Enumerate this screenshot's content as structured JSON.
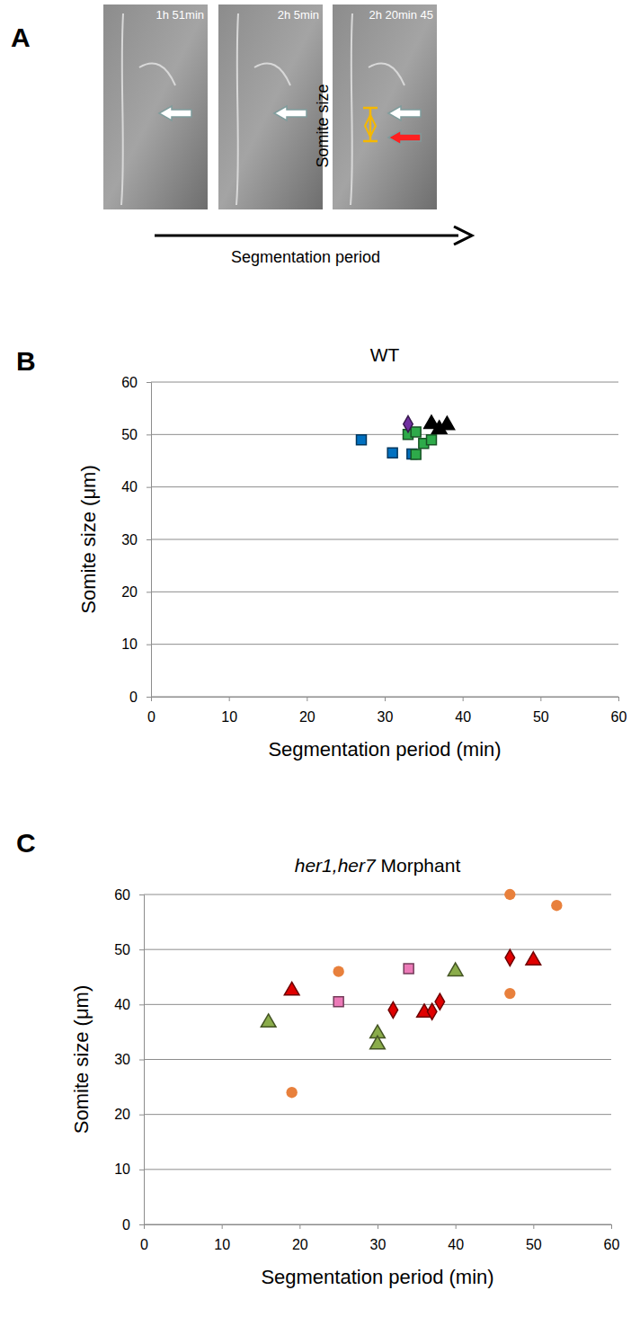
{
  "figure_a": {
    "panel_label": "A",
    "frames": [
      "1h 51min",
      "2h 5min",
      "2h 20min 45"
    ],
    "vertical_label": "Somite size",
    "arrow_label": "Segmentation period"
  },
  "chart_data": [
    {
      "type": "scatter",
      "panel_label": "B",
      "title": "WT",
      "x_label": "Segmentation period (min)",
      "y_label": "Somite size (μm)",
      "xlim": [
        0,
        60
      ],
      "ylim": [
        0,
        60
      ],
      "xticks": [
        0,
        10,
        20,
        30,
        40,
        50,
        60
      ],
      "yticks": [
        0,
        10,
        20,
        30,
        40,
        50,
        60
      ],
      "grid": true,
      "series": [
        {
          "color": "#0070c0",
          "marker": "square",
          "x": [
            27,
            31,
            33.5
          ],
          "values": [
            49,
            46.5,
            46.3
          ]
        },
        {
          "color": "#2eaa4a",
          "marker": "square",
          "x": [
            33,
            34,
            35,
            36,
            34
          ],
          "values": [
            50,
            50.5,
            48.3,
            49,
            46.2
          ]
        },
        {
          "color": "#7030a0",
          "marker": "diamond",
          "x": [
            33
          ],
          "values": [
            52
          ]
        },
        {
          "color": "#000000",
          "marker": "triangle",
          "x": [
            36,
            37,
            38
          ],
          "values": [
            52,
            51,
            51.8
          ]
        }
      ]
    },
    {
      "type": "scatter",
      "panel_label": "C",
      "title": "her1,her7 Morphant",
      "x_label": "Segmentation period (min)",
      "y_label": "Somite size (μm)",
      "xlim": [
        0,
        60
      ],
      "ylim": [
        0,
        60
      ],
      "xticks": [
        0,
        10,
        20,
        30,
        40,
        50,
        60
      ],
      "yticks": [
        0,
        10,
        20,
        30,
        40,
        50,
        60
      ],
      "grid": true,
      "series": [
        {
          "color": "#e8803c",
          "marker": "circle",
          "x": [
            19,
            25,
            47,
            47,
            53
          ],
          "values": [
            24,
            46,
            60,
            42,
            58
          ]
        },
        {
          "color": "#e00000",
          "marker": "triangle",
          "x": [
            19,
            36,
            50
          ],
          "values": [
            42.5,
            38.5,
            48
          ]
        },
        {
          "color": "#e00000",
          "marker": "diamond",
          "x": [
            32,
            37,
            38,
            47
          ],
          "values": [
            39,
            38.7,
            40.5,
            48.5
          ]
        },
        {
          "color": "#8aac4a",
          "marker": "triangle",
          "x": [
            16,
            30,
            30,
            40
          ],
          "values": [
            36.7,
            34.7,
            32.7,
            46
          ]
        },
        {
          "color": "#ec7ab8",
          "marker": "square",
          "x": [
            25,
            34
          ],
          "values": [
            40.5,
            46.5
          ]
        }
      ]
    }
  ]
}
